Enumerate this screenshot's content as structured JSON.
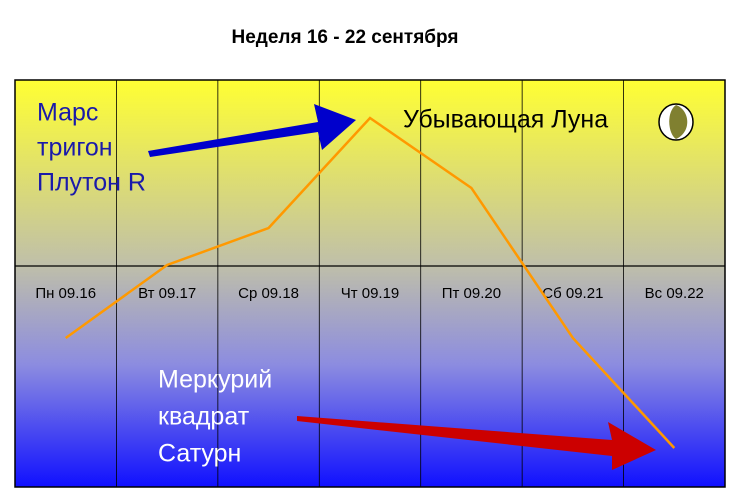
{
  "chart_data": {
    "type": "line",
    "title": "Неделя 16 - 22 сентября",
    "categories": [
      "Пн 09.16",
      "Вт 09.17",
      "Ср 09.18",
      "Чт 09.19",
      "Пт 09.20",
      "Сб 09.21",
      "Вс 09.22"
    ],
    "values": [
      -72,
      1,
      38,
      148,
      78,
      -72,
      -182
    ],
    "color": "#ff9900",
    "ylim": [
      -221,
      186
    ],
    "annotations": [
      {
        "lines": [
          "Марс",
          "тригон",
          "Плутон R"
        ]
      },
      {
        "lines": [
          "Убывающая Луна"
        ]
      },
      {
        "lines": [
          "Меркурий",
          "квадрат",
          "Сатурн"
        ]
      }
    ]
  }
}
